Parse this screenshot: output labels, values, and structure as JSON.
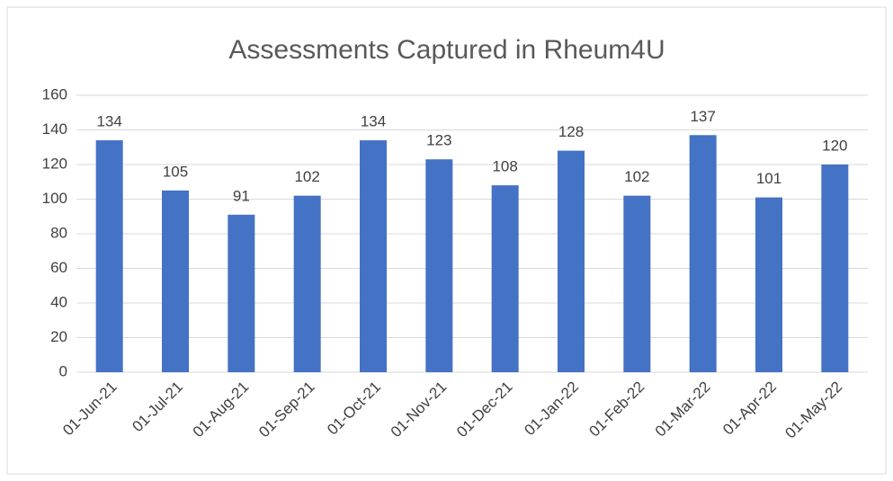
{
  "chart_data": {
    "type": "bar",
    "title": "Assessments Captured in Rheum4U",
    "categories": [
      "01-Jun-21",
      "01-Jul-21",
      "01-Aug-21",
      "01-Sep-21",
      "01-Oct-21",
      "01-Nov-21",
      "01-Dec-21",
      "01-Jan-22",
      "01-Feb-22",
      "01-Mar-22",
      "01-Apr-22",
      "01-May-22"
    ],
    "values": [
      134,
      105,
      91,
      102,
      134,
      123,
      108,
      128,
      102,
      137,
      101,
      120
    ],
    "color": "#4472c4",
    "ylim": [
      0,
      160
    ],
    "yticks": [
      0,
      20,
      40,
      60,
      80,
      100,
      120,
      140,
      160
    ],
    "grid": true
  }
}
